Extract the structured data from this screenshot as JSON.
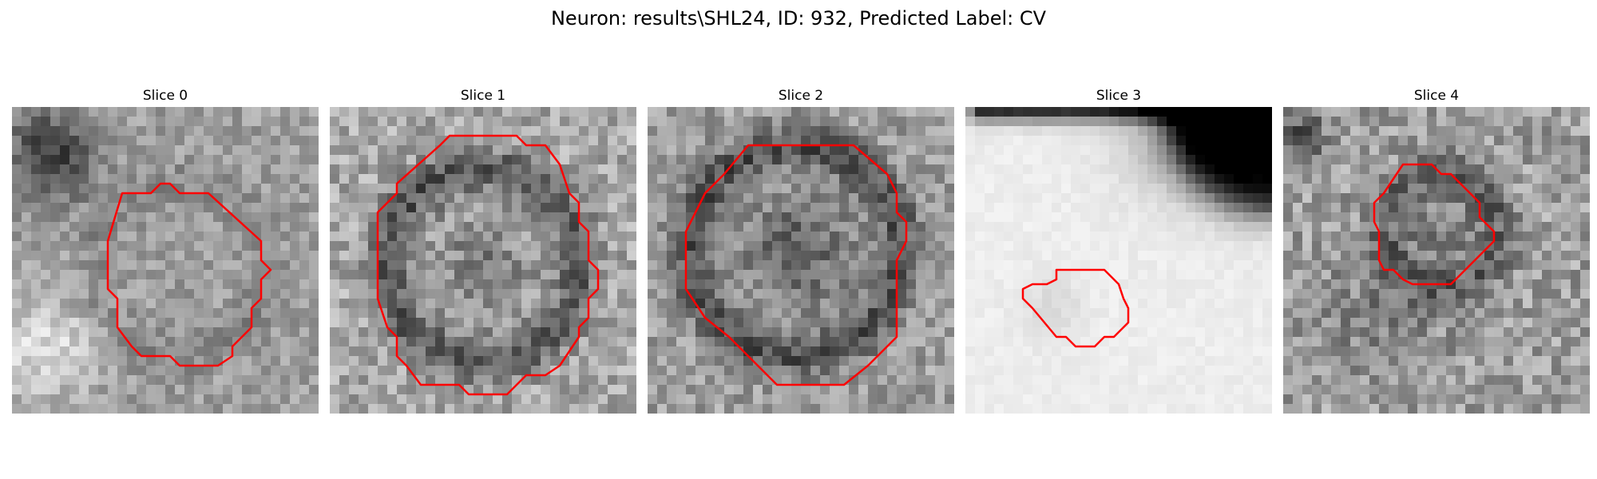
{
  "figure": {
    "title": "Neuron: results\\SHL24, ID: 932, Predicted Label: CV"
  },
  "panels": [
    {
      "title": "Slice 0",
      "image": "grayscale-microscopy-patch",
      "contour_color": "#ff0000"
    },
    {
      "title": "Slice 1",
      "image": "grayscale-microscopy-patch",
      "contour_color": "#ff0000"
    },
    {
      "title": "Slice 2",
      "image": "grayscale-microscopy-patch",
      "contour_color": "#ff0000"
    },
    {
      "title": "Slice 3",
      "image": "grayscale-microscopy-patch",
      "contour_color": "#ff0000"
    },
    {
      "title": "Slice 4",
      "image": "grayscale-microscopy-patch",
      "contour_color": "#ff0000"
    }
  ]
}
